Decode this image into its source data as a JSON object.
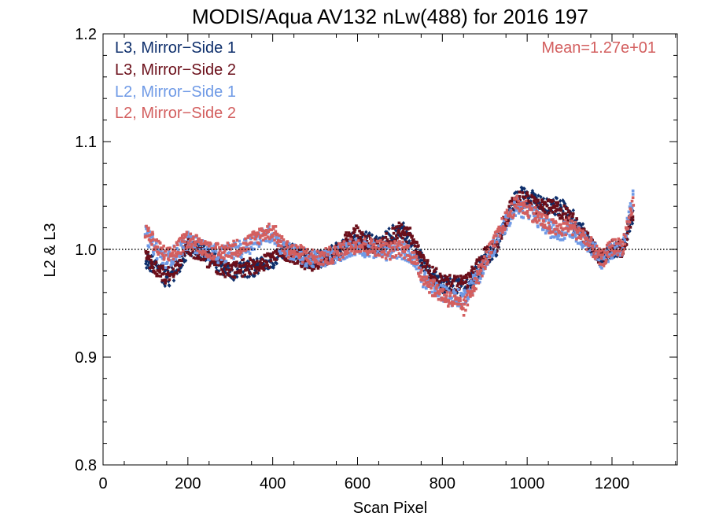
{
  "chart_data": {
    "type": "scatter",
    "title": "MODIS/Aqua AV132 nLw(488) for 2016 197",
    "xlabel": "Scan Pixel",
    "ylabel": "L2 & L3",
    "xlim": [
      0,
      1354
    ],
    "ylim": [
      0.8,
      1.2
    ],
    "xticks": [
      0,
      200,
      400,
      600,
      800,
      1000,
      1200
    ],
    "xtick_labels": [
      "0",
      "200",
      "400",
      "600",
      "800",
      "1000",
      "1200"
    ],
    "yticks": [
      0.8,
      0.9,
      1.0,
      1.1,
      1.2
    ],
    "ytick_labels": [
      "0.8",
      "0.9",
      "1.0",
      "1.1",
      "1.2"
    ],
    "reference_line": {
      "y": 1.0,
      "style": "dotted"
    },
    "annotation": "Mean=1.27e+01",
    "annotation_color": "#d35f5f",
    "legend_position": "top-left",
    "series": [
      {
        "name": "L3, Mirror−Side 1",
        "color": "#0d2e6b",
        "marker": "diamond",
        "x": [
          100,
          125,
          150,
          175,
          200,
          225,
          250,
          275,
          300,
          325,
          350,
          375,
          400,
          425,
          450,
          475,
          500,
          525,
          550,
          575,
          600,
          625,
          650,
          675,
          700,
          725,
          750,
          775,
          800,
          825,
          850,
          875,
          900,
          925,
          950,
          975,
          1000,
          1025,
          1050,
          1075,
          1100,
          1125,
          1150,
          1175,
          1200,
          1225,
          1250
        ],
        "y": [
          0.99,
          0.985,
          0.972,
          0.98,
          1.0,
          1.0,
          0.995,
          0.985,
          0.978,
          0.98,
          0.982,
          0.985,
          0.99,
          1.0,
          0.997,
          0.992,
          0.99,
          0.993,
          0.998,
          1.005,
          1.01,
          1.008,
          1.003,
          1.012,
          1.02,
          1.01,
          0.99,
          0.975,
          0.968,
          0.965,
          0.965,
          0.975,
          0.99,
          1.0,
          1.025,
          1.05,
          1.05,
          1.045,
          1.04,
          1.04,
          1.035,
          1.02,
          1.005,
          0.99,
          1.0,
          1.0,
          1.03
        ]
      },
      {
        "name": "L3, Mirror−Side 2",
        "color": "#6b0f1a",
        "marker": "square",
        "x": [
          100,
          125,
          150,
          175,
          200,
          225,
          250,
          275,
          300,
          325,
          350,
          375,
          400,
          425,
          450,
          475,
          500,
          525,
          550,
          575,
          600,
          625,
          650,
          675,
          700,
          725,
          750,
          775,
          800,
          825,
          850,
          875,
          900,
          925,
          950,
          975,
          1000,
          1025,
          1050,
          1075,
          1100,
          1125,
          1150,
          1175,
          1200,
          1225,
          1250
        ],
        "y": [
          0.992,
          0.982,
          0.975,
          0.985,
          1.002,
          0.997,
          0.99,
          0.983,
          0.98,
          0.982,
          0.985,
          0.987,
          0.992,
          0.998,
          0.995,
          0.99,
          0.988,
          0.992,
          0.997,
          1.008,
          1.015,
          1.005,
          1.002,
          1.01,
          1.018,
          1.012,
          0.992,
          0.978,
          0.97,
          0.968,
          0.968,
          0.978,
          0.993,
          1.003,
          1.028,
          1.048,
          1.045,
          1.04,
          1.038,
          1.037,
          1.03,
          1.018,
          1.003,
          0.992,
          1.002,
          1.0,
          1.035
        ]
      },
      {
        "name": "L2, Mirror−Side 1",
        "color": "#6f9ae6",
        "marker": "square",
        "x": [
          100,
          125,
          150,
          175,
          200,
          225,
          250,
          275,
          300,
          325,
          350,
          375,
          400,
          425,
          450,
          475,
          500,
          525,
          550,
          575,
          600,
          625,
          650,
          675,
          700,
          725,
          750,
          775,
          800,
          825,
          850,
          875,
          900,
          925,
          950,
          975,
          1000,
          1025,
          1050,
          1075,
          1100,
          1125,
          1150,
          1175,
          1200,
          1225,
          1250
        ],
        "y": [
          1.015,
          1.0,
          0.99,
          0.998,
          1.008,
          1.003,
          0.998,
          0.995,
          0.998,
          1.0,
          1.005,
          1.012,
          1.015,
          1.0,
          0.997,
          0.993,
          0.99,
          0.992,
          0.995,
          1.0,
          1.003,
          1.0,
          1.0,
          0.997,
          1.0,
          0.995,
          0.975,
          0.965,
          0.96,
          0.955,
          0.955,
          0.97,
          0.985,
          1.005,
          1.025,
          1.04,
          1.035,
          1.028,
          1.02,
          1.015,
          1.02,
          1.012,
          1.003,
          0.99,
          1.0,
          1.0,
          1.05
        ]
      },
      {
        "name": "L2, Mirror−Side 2",
        "color": "#d35f5f",
        "marker": "square",
        "x": [
          100,
          125,
          150,
          175,
          200,
          225,
          250,
          275,
          300,
          325,
          350,
          375,
          400,
          425,
          450,
          475,
          500,
          525,
          550,
          575,
          600,
          625,
          650,
          675,
          700,
          725,
          750,
          775,
          800,
          825,
          850,
          875,
          900,
          925,
          950,
          975,
          1000,
          1025,
          1050,
          1075,
          1100,
          1125,
          1150,
          1175,
          1200,
          1225,
          1250
        ],
        "y": [
          1.018,
          1.003,
          0.993,
          1.0,
          1.01,
          1.005,
          1.0,
          0.997,
          1.0,
          1.002,
          1.008,
          1.015,
          1.018,
          1.003,
          0.998,
          0.995,
          0.992,
          0.993,
          0.996,
          1.002,
          1.005,
          1.002,
          1.002,
          0.998,
          1.002,
          0.997,
          0.978,
          0.965,
          0.958,
          0.952,
          0.945,
          0.968,
          0.988,
          1.008,
          1.028,
          1.042,
          1.038,
          1.03,
          1.022,
          1.018,
          1.022,
          1.015,
          1.003,
          0.99,
          1.002,
          1.003,
          1.045
        ]
      }
    ]
  }
}
